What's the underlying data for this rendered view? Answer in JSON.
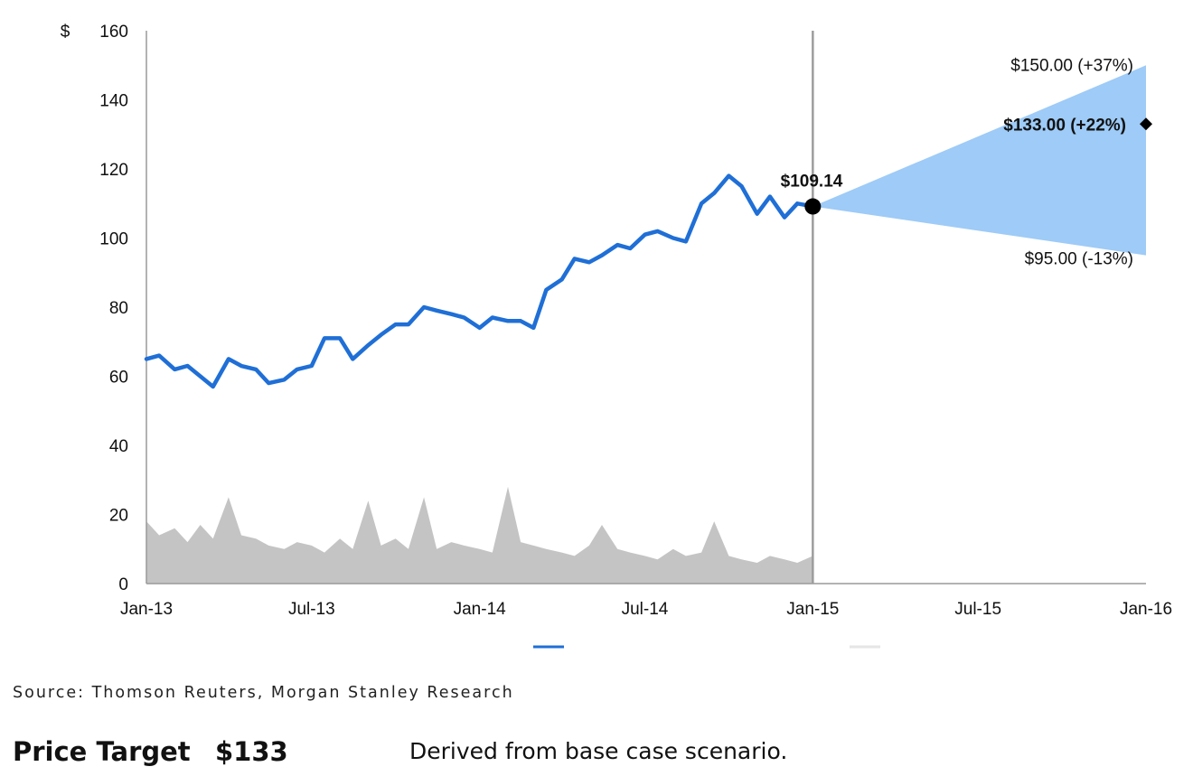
{
  "chart_data": {
    "type": "line",
    "ylabel": "$",
    "ylim": [
      0,
      160
    ],
    "yticks": [
      0,
      20,
      40,
      60,
      80,
      100,
      120,
      140,
      160
    ],
    "xlim": [
      "2013-01-01",
      "2016-01-01"
    ],
    "x_tick_labels": [
      "Jan-13",
      "Jul-13",
      "Jan-14",
      "Jul-14",
      "Jan-15",
      "Jul-15",
      "Jan-16"
    ],
    "x_tick_dates": [
      "2013-01-01",
      "2013-07-01",
      "2014-01-01",
      "2014-07-01",
      "2015-01-01",
      "2015-07-01",
      "2016-01-01"
    ],
    "grid": false,
    "legend_position": "bottom",
    "legend_entries": [
      "",
      "",
      ""
    ],
    "series": [
      {
        "color": "#1f6fd6",
        "kind": "price",
        "x": [
          "2013-01-01",
          "2013-01-15",
          "2013-02-01",
          "2013-02-15",
          "2013-03-01",
          "2013-03-15",
          "2013-04-01",
          "2013-04-15",
          "2013-05-01",
          "2013-05-15",
          "2013-06-01",
          "2013-06-15",
          "2013-07-01",
          "2013-07-15",
          "2013-08-01",
          "2013-08-15",
          "2013-09-01",
          "2013-09-15",
          "2013-10-01",
          "2013-10-15",
          "2013-11-01",
          "2013-11-15",
          "2013-12-01",
          "2013-12-15",
          "2014-01-01",
          "2014-01-15",
          "2014-02-01",
          "2014-02-15",
          "2014-03-01",
          "2014-03-15",
          "2014-04-01",
          "2014-04-15",
          "2014-05-01",
          "2014-05-15",
          "2014-06-01",
          "2014-06-15",
          "2014-07-01",
          "2014-07-15",
          "2014-08-01",
          "2014-08-15",
          "2014-09-01",
          "2014-09-15",
          "2014-10-01",
          "2014-10-15",
          "2014-11-01",
          "2014-11-15",
          "2014-12-01",
          "2014-12-15",
          "2015-01-01"
        ],
        "y": [
          65,
          66,
          62,
          63,
          60,
          57,
          65,
          63,
          62,
          58,
          59,
          62,
          63,
          71,
          71,
          65,
          69,
          72,
          75,
          75,
          80,
          79,
          78,
          77,
          74,
          77,
          76,
          76,
          74,
          85,
          88,
          94,
          93,
          95,
          98,
          97,
          101,
          102,
          100,
          99,
          110,
          113,
          118,
          115,
          107,
          112,
          106,
          110,
          109.14
        ]
      },
      {
        "color": "#c4c4c4",
        "kind": "volume",
        "x": [
          "2013-01-01",
          "2013-01-15",
          "2013-02-01",
          "2013-02-15",
          "2013-03-01",
          "2013-03-15",
          "2013-04-01",
          "2013-04-15",
          "2013-05-01",
          "2013-05-15",
          "2013-06-01",
          "2013-06-15",
          "2013-07-01",
          "2013-07-15",
          "2013-08-01",
          "2013-08-15",
          "2013-09-01",
          "2013-09-15",
          "2013-10-01",
          "2013-10-15",
          "2013-11-01",
          "2013-11-15",
          "2013-12-01",
          "2013-12-15",
          "2014-01-01",
          "2014-01-15",
          "2014-02-01",
          "2014-02-15",
          "2014-03-01",
          "2014-03-15",
          "2014-04-01",
          "2014-04-15",
          "2014-05-01",
          "2014-05-15",
          "2014-06-01",
          "2014-06-15",
          "2014-07-01",
          "2014-07-15",
          "2014-08-01",
          "2014-08-15",
          "2014-09-01",
          "2014-09-15",
          "2014-10-01",
          "2014-10-15",
          "2014-11-01",
          "2014-11-15",
          "2014-12-01",
          "2014-12-15",
          "2015-01-01"
        ],
        "y": [
          18,
          14,
          16,
          12,
          17,
          13,
          25,
          14,
          13,
          11,
          10,
          12,
          11,
          9,
          13,
          10,
          24,
          11,
          13,
          10,
          25,
          10,
          12,
          11,
          10,
          9,
          28,
          12,
          11,
          10,
          9,
          8,
          11,
          17,
          10,
          9,
          8,
          7,
          10,
          8,
          9,
          18,
          8,
          7,
          6,
          8,
          7,
          6,
          8
        ]
      }
    ],
    "projection": {
      "start_date": "2015-01-01",
      "end_date": "2016-01-01",
      "start_value": 109.14,
      "high": 150.0,
      "base": 133.0,
      "low": 95.0,
      "fill_color": "#9ecbf7"
    },
    "divider_date": "2015-01-01",
    "annotations": {
      "current": "$109.14",
      "high": "$150.00 (+37%)",
      "base": "$133.00 (+22%)",
      "low": "$95.00 (-13%)"
    }
  },
  "source": "Source: Thomson Reuters, Morgan Stanley Research",
  "price_target": {
    "label": "Price Target",
    "value": "$133",
    "description": "Derived from base case scenario."
  }
}
